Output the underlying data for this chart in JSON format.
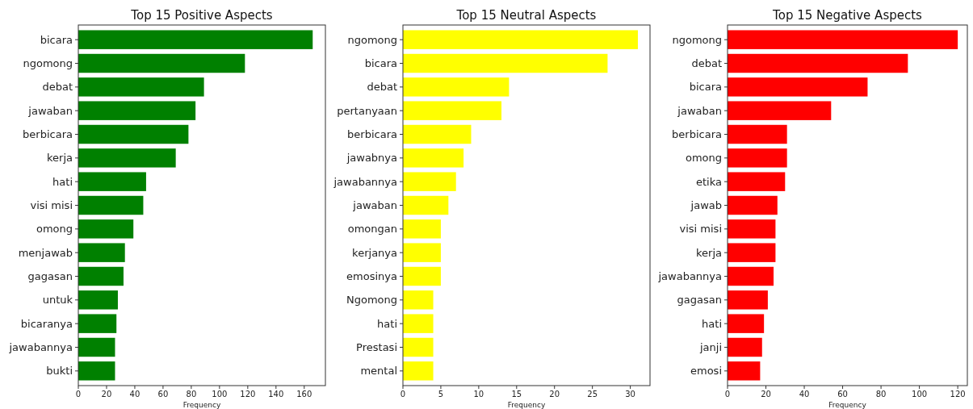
{
  "chart_data": [
    {
      "type": "bar",
      "orientation": "horizontal",
      "title": "Top 15 Positive Aspects",
      "xlabel": "Frequency",
      "categories": [
        "bicara",
        "ngomong",
        "debat",
        "jawaban",
        "berbicara",
        "kerja",
        "hati",
        "visi misi",
        "omong",
        "menjawab",
        "gagasan",
        "untuk",
        "bicaranya",
        "jawabannya",
        "bukti"
      ],
      "values": [
        166,
        118,
        89,
        83,
        78,
        69,
        48,
        46,
        39,
        33,
        32,
        28,
        27,
        26,
        26
      ],
      "color": "#008000",
      "xlim": [
        0,
        175
      ],
      "xticks": [
        0,
        20,
        40,
        60,
        80,
        100,
        120,
        140,
        160
      ]
    },
    {
      "type": "bar",
      "orientation": "horizontal",
      "title": "Top 15 Neutral Aspects",
      "xlabel": "Frequency",
      "categories": [
        "ngomong",
        "bicara",
        "debat",
        "pertanyaan",
        "berbicara",
        "jawabnya",
        "jawabannya",
        "jawaban",
        "omongan",
        "kerjanya",
        "emosinya",
        "Ngomong",
        "hati",
        "Prestasi",
        "mental"
      ],
      "values": [
        31,
        27,
        14,
        13,
        9,
        8,
        7,
        6,
        5,
        5,
        5,
        4,
        4,
        4,
        4
      ],
      "color": "#ffff00",
      "xlim": [
        0,
        32.6
      ],
      "xticks": [
        0,
        5,
        10,
        15,
        20,
        25,
        30
      ]
    },
    {
      "type": "bar",
      "orientation": "horizontal",
      "title": "Top 15 Negative Aspects",
      "xlabel": "Frequency",
      "categories": [
        "ngomong",
        "debat",
        "bicara",
        "jawaban",
        "berbicara",
        "omong",
        "etika",
        "jawab",
        "visi misi",
        "kerja",
        "jawabannya",
        "gagasan",
        "hati",
        "janji",
        "emosi"
      ],
      "values": [
        120,
        94,
        73,
        54,
        31,
        31,
        30,
        26,
        25,
        25,
        24,
        21,
        19,
        18,
        17
      ],
      "color": "#ff0000",
      "xlim": [
        0,
        125
      ],
      "xticks": [
        0,
        20,
        40,
        60,
        80,
        100,
        120
      ]
    }
  ]
}
